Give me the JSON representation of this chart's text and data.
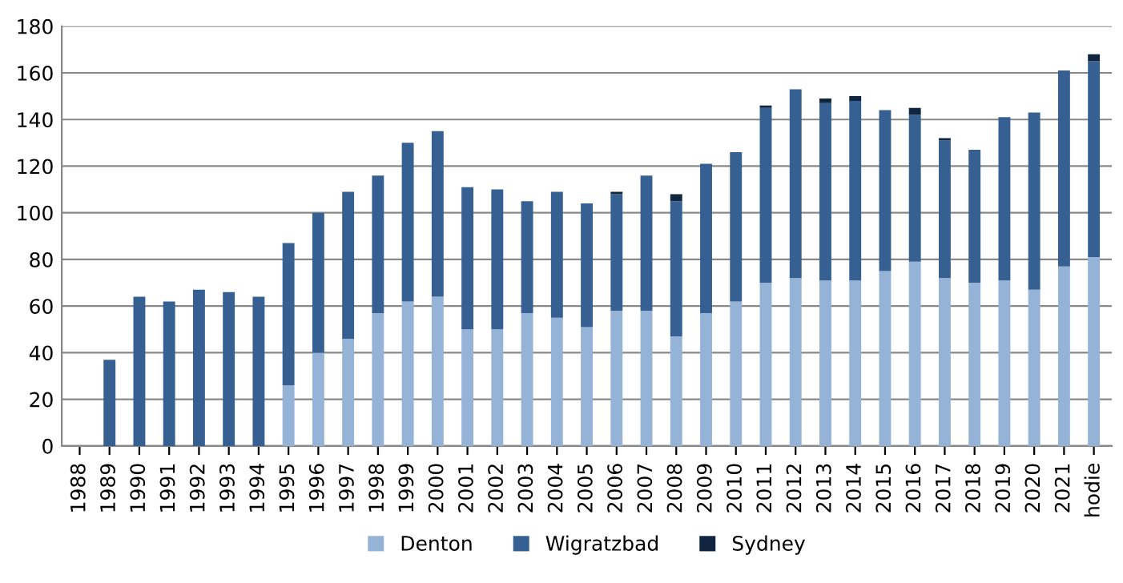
{
  "chart_data": {
    "type": "bar",
    "stacked": true,
    "categories": [
      "1988",
      "1989",
      "1990",
      "1991",
      "1992",
      "1993",
      "1994",
      "1995",
      "1996",
      "1997",
      "1998",
      "1999",
      "2000",
      "2001",
      "2002",
      "2003",
      "2004",
      "2005",
      "2006",
      "2007",
      "2008",
      "2009",
      "2010",
      "2011",
      "2012",
      "2013",
      "2014",
      "2015",
      "2016",
      "2017",
      "2018",
      "2019",
      "2020",
      "2021",
      "hodie"
    ],
    "series": [
      {
        "name": "Denton",
        "color": "#95b3d7",
        "values": [
          0,
          0,
          0,
          0,
          0,
          0,
          0,
          26,
          40,
          46,
          57,
          62,
          64,
          50,
          50,
          57,
          55,
          51,
          58,
          58,
          47,
          57,
          62,
          70,
          72,
          71,
          71,
          75,
          79,
          72,
          70,
          71,
          67,
          77,
          81
        ]
      },
      {
        "name": "Wigratzbad",
        "color": "#376092",
        "values": [
          0,
          37,
          64,
          62,
          67,
          66,
          64,
          61,
          60,
          63,
          59,
          68,
          71,
          61,
          60,
          48,
          54,
          53,
          50,
          58,
          58,
          64,
          64,
          75,
          81,
          76,
          77,
          69,
          63,
          59,
          57,
          70,
          76,
          84,
          84
        ]
      },
      {
        "name": "Sydney",
        "color": "#10253f",
        "values": [
          0,
          0,
          0,
          0,
          0,
          0,
          0,
          0,
          0,
          0,
          0,
          0,
          0,
          0,
          0,
          0,
          0,
          0,
          1,
          0,
          3,
          0,
          0,
          1,
          0,
          2,
          2,
          0,
          3,
          1,
          0,
          0,
          0,
          0,
          3
        ]
      }
    ],
    "ylim": [
      0,
      180
    ],
    "yticks": [
      0,
      20,
      40,
      60,
      80,
      100,
      120,
      140,
      160,
      180
    ],
    "grid": "y",
    "legend": "bottom"
  }
}
